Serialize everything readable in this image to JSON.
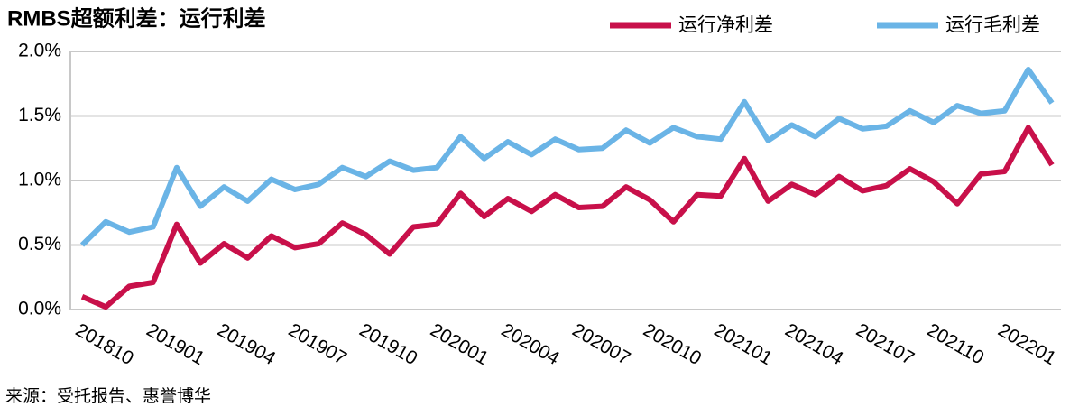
{
  "chart_data": {
    "type": "line",
    "title": "RMBS超额利差：运行利差",
    "source": "来源：受托报告、惠誉博华",
    "categories": [
      "201810",
      null,
      null,
      "201901",
      null,
      null,
      "201904",
      null,
      null,
      "201907",
      null,
      null,
      "201910",
      null,
      null,
      "202001",
      null,
      null,
      "202004",
      null,
      null,
      "202007",
      null,
      null,
      "202010",
      null,
      null,
      "202101",
      null,
      null,
      "202104",
      null,
      null,
      "202107",
      null,
      null,
      "202110",
      null,
      null,
      "202201",
      null,
      null
    ],
    "series": [
      {
        "name": "运行净利差",
        "color": "#c8104a",
        "values": [
          0.1,
          0.02,
          0.18,
          0.21,
          0.66,
          0.36,
          0.51,
          0.4,
          0.57,
          0.48,
          0.51,
          0.67,
          0.58,
          0.43,
          0.64,
          0.66,
          0.9,
          0.72,
          0.86,
          0.76,
          0.89,
          0.79,
          0.8,
          0.95,
          0.85,
          0.68,
          0.89,
          0.88,
          1.17,
          0.84,
          0.97,
          0.89,
          1.03,
          0.92,
          0.96,
          1.09,
          0.99,
          0.82,
          1.05,
          1.07,
          1.41,
          1.12
        ]
      },
      {
        "name": "运行毛利差",
        "color": "#6ab4e6",
        "values": [
          0.5,
          0.68,
          0.6,
          0.64,
          1.1,
          0.8,
          0.95,
          0.84,
          1.01,
          0.93,
          0.97,
          1.1,
          1.03,
          1.15,
          1.08,
          1.1,
          1.34,
          1.17,
          1.3,
          1.2,
          1.32,
          1.24,
          1.25,
          1.39,
          1.29,
          1.41,
          1.34,
          1.32,
          1.61,
          1.31,
          1.43,
          1.34,
          1.48,
          1.4,
          1.42,
          1.54,
          1.45,
          1.58,
          1.52,
          1.54,
          1.86,
          1.6
        ]
      }
    ],
    "ylim": [
      0,
      2
    ],
    "yticks": [
      {
        "value": 0,
        "label": "0.0%"
      },
      {
        "value": 0.5,
        "label": "0.5%"
      },
      {
        "value": 1,
        "label": "1.0%"
      },
      {
        "value": 1.5,
        "label": "1.5%"
      },
      {
        "value": 2,
        "label": "2.0%"
      }
    ],
    "grid": true,
    "legend": "top-right"
  }
}
